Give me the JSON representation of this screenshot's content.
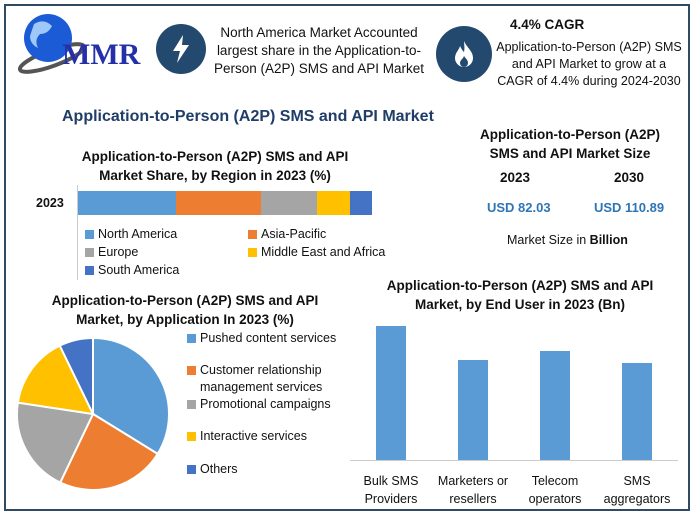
{
  "logo": {
    "text": "MMR"
  },
  "header": {
    "highlight_text": "North America Market Accounted largest share in the Application-to-Person (A2P) SMS and API Market",
    "cagr_title": "4.4% CAGR",
    "cagr_text": "Application-to-Person (A2P) SMS and API Market to grow at a CAGR of 4.4% during 2024-2030",
    "icons": [
      "lightning-icon",
      "flame-icon"
    ]
  },
  "main_title": "Application-to-Person (A2P) SMS and API Market",
  "market_size": {
    "title": "Application-to-Person (A2P) SMS and API Market Size",
    "year1": "2023",
    "year2": "2030",
    "value1": "USD 82.03",
    "value2": "USD 110.89",
    "note_prefix": "Market Size in ",
    "note_unit": "Billion"
  },
  "colors": {
    "blue": "#5b9bd5",
    "orange": "#ed7d31",
    "gray": "#a5a5a5",
    "yellow": "#ffc000",
    "darkblue": "#4472c4",
    "navy": "#24496e"
  },
  "chart_data": [
    {
      "type": "bar",
      "orientation": "horizontal-stacked",
      "title": "Application-to-Person (A2P) SMS and API Market Share, by Region in 2023 (%)",
      "categories": [
        "2023"
      ],
      "series": [
        {
          "name": "North America",
          "values": [
            33.4
          ]
        },
        {
          "name": "Asia-Pacific",
          "values": [
            29.0
          ]
        },
        {
          "name": "Europe",
          "values": [
            18.8
          ]
        },
        {
          "name": "Middle East and Africa",
          "values": [
            11.3
          ]
        },
        {
          "name": "South America",
          "values": [
            7.5
          ]
        }
      ],
      "xlim": [
        0,
        100
      ],
      "legend": "bottom"
    },
    {
      "type": "pie",
      "title": "Application-to-Person (A2P) SMS and API Market, by Application In 2023 (%)",
      "labels": [
        "Pushed content services",
        "Customer relationship management services",
        "Promotional campaigns",
        "Interactive services",
        "Others"
      ],
      "values": [
        33.8,
        23.3,
        20.3,
        15.4,
        7.2
      ],
      "legend": "right"
    },
    {
      "type": "bar",
      "title": "Application-to-Person (A2P) SMS and API Market, by End User in 2023 (Bn)",
      "categories": [
        "Bulk SMS Providers",
        "Marketers or resellers",
        "Telecom operators",
        "SMS aggregators"
      ],
      "values": [
        25.0,
        18.6,
        20.3,
        18.1
      ],
      "ylim": [
        0,
        25.0
      ],
      "grid": false
    }
  ]
}
